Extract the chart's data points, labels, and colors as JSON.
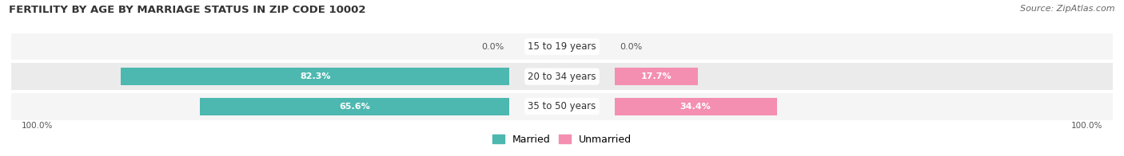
{
  "title": "FERTILITY BY AGE BY MARRIAGE STATUS IN ZIP CODE 10002",
  "source": "Source: ZipAtlas.com",
  "categories": [
    "15 to 19 years",
    "20 to 34 years",
    "35 to 50 years"
  ],
  "married_values": [
    0.0,
    82.3,
    65.6
  ],
  "unmarried_values": [
    0.0,
    17.7,
    34.4
  ],
  "married_color": "#4db8b0",
  "unmarried_color": "#f48fb1",
  "row_bg_even": "#ebebeb",
  "row_bg_odd": "#f5f5f5",
  "label_married": "Married",
  "label_unmarried": "Unmarried",
  "x_left_label": "100.0%",
  "x_right_label": "100.0%",
  "title_fontsize": 9.5,
  "source_fontsize": 8,
  "bar_label_fontsize": 8,
  "category_fontsize": 8.5,
  "legend_fontsize": 9
}
